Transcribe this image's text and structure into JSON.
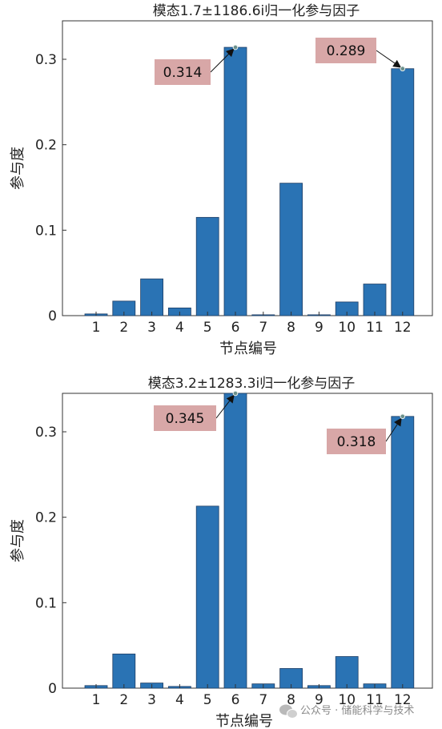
{
  "chart_data": [
    {
      "type": "bar",
      "title": "模态1.7±1186.6i归一化参与因子",
      "xlabel": "节点编号",
      "ylabel": "参与度",
      "categories": [
        "1",
        "2",
        "3",
        "4",
        "5",
        "6",
        "7",
        "8",
        "9",
        "10",
        "11",
        "12"
      ],
      "values": [
        0.002,
        0.017,
        0.043,
        0.009,
        0.115,
        0.314,
        0.001,
        0.155,
        0.001,
        0.016,
        0.037,
        0.289
      ],
      "ylim": [
        0,
        0.345
      ],
      "yticks": [
        0,
        0.1,
        0.2,
        0.3
      ],
      "ytick_labels": [
        "0",
        "0.1",
        "0.2",
        "0.3"
      ],
      "bar_color": "#2a73b4",
      "annotation_color": "#d8a7a7",
      "annotations": [
        {
          "category": "6",
          "value": 0.314,
          "text": "0.314",
          "placement": "left"
        },
        {
          "category": "12",
          "value": 0.289,
          "text": "0.289",
          "placement": "upper-left"
        }
      ]
    },
    {
      "type": "bar",
      "title": "模态3.2±1283.3i归一化参与因子",
      "xlabel": "节点编号",
      "ylabel": "参与度",
      "categories": [
        "1",
        "2",
        "3",
        "4",
        "5",
        "6",
        "7",
        "8",
        "9",
        "10",
        "11",
        "12"
      ],
      "values": [
        0.003,
        0.04,
        0.006,
        0.002,
        0.213,
        0.345,
        0.005,
        0.023,
        0.003,
        0.037,
        0.005,
        0.318
      ],
      "ylim": [
        0,
        0.345
      ],
      "yticks": [
        0,
        0.1,
        0.2,
        0.3
      ],
      "ytick_labels": [
        "0",
        "0.1",
        "0.2",
        "0.3"
      ],
      "bar_color": "#2a73b4",
      "annotation_color": "#d8a7a7",
      "annotations": [
        {
          "category": "6",
          "value": 0.345,
          "text": "0.345",
          "placement": "left"
        },
        {
          "category": "12",
          "value": 0.318,
          "text": "0.318",
          "placement": "left"
        }
      ]
    }
  ],
  "watermark": {
    "text": "公众号 · 储能科学与技术",
    "icon": "wechat-icon"
  }
}
